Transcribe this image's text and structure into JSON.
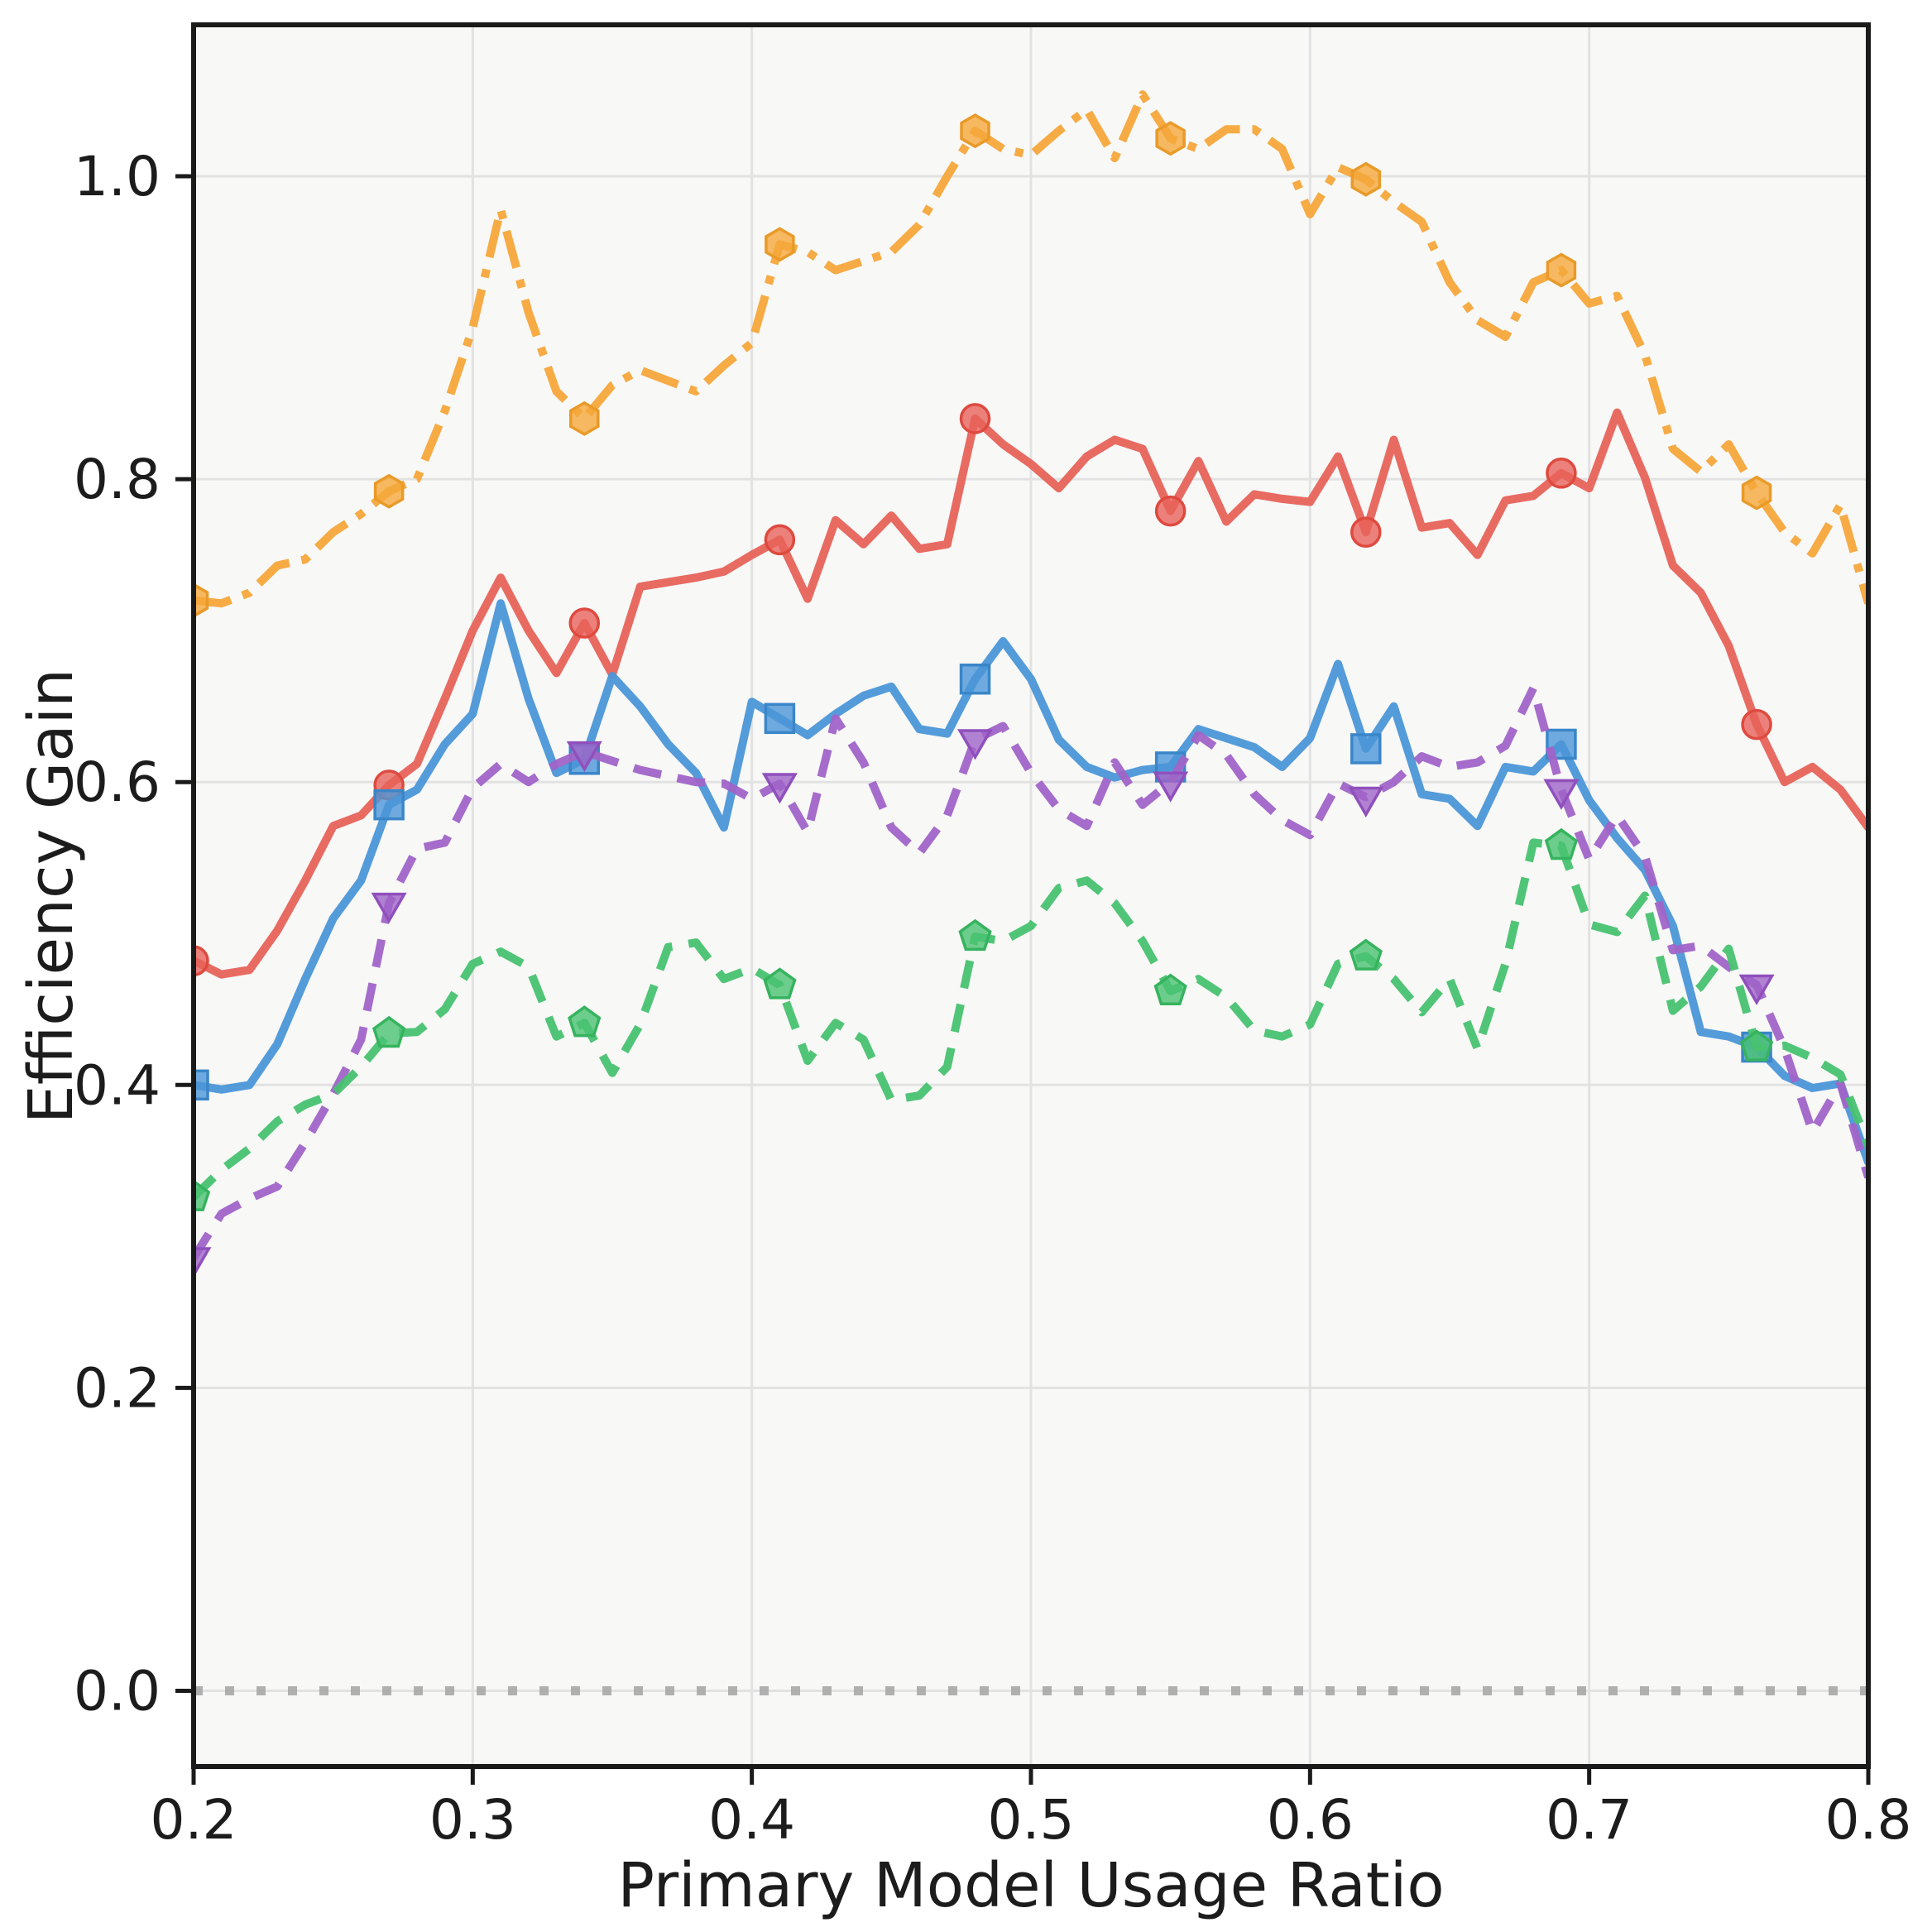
{
  "chart_data": {
    "type": "line",
    "title": "",
    "xlabel": "Primary Model Usage Ratio",
    "ylabel": "Efficiency Gain",
    "xlim": [
      0.2,
      0.8
    ],
    "ylim": [
      -0.05,
      1.1
    ],
    "x_tick_labels": [
      "0.2",
      "0.3",
      "0.4",
      "0.5",
      "0.6",
      "0.7",
      "0.8"
    ],
    "y_tick_labels": [
      "0.0",
      "0.2",
      "0.4",
      "0.6",
      "0.8",
      "1.0"
    ],
    "grid": true,
    "legend": "none",
    "marker_every": 7,
    "background_plot": "#F8F8F7",
    "background_figure": "#FFFFFF",
    "grid_color": "#E2E2E2",
    "spine_color": "#1a1a1a",
    "text_color": "#1c1c1c",
    "x": [
      0.2,
      0.21,
      0.22,
      0.23,
      0.24,
      0.25,
      0.26,
      0.27,
      0.28,
      0.29,
      0.3,
      0.31,
      0.32,
      0.33,
      0.34,
      0.35,
      0.36,
      0.37,
      0.38,
      0.39,
      0.4,
      0.41,
      0.42,
      0.43,
      0.44,
      0.45,
      0.46,
      0.47,
      0.48,
      0.49,
      0.5,
      0.51,
      0.52,
      0.53,
      0.54,
      0.55,
      0.56,
      0.57,
      0.58,
      0.59,
      0.6,
      0.61,
      0.62,
      0.63,
      0.64,
      0.65,
      0.66,
      0.67,
      0.68,
      0.69,
      0.7,
      0.71,
      0.72,
      0.73,
      0.74,
      0.75,
      0.76,
      0.77,
      0.78,
      0.79,
      0.8
    ],
    "baseline": {
      "y": 0.0,
      "color": "#A9A9A9",
      "linestyle": "dotted"
    },
    "series": [
      {
        "name": "orange-dashdot-hexagon",
        "color": "#F5A73A",
        "edge_color": "#E99A28",
        "linestyle": "dashdot",
        "marker": "hexagon",
        "values": [
          0.72,
          0.718,
          0.725,
          0.743,
          0.747,
          0.765,
          0.777,
          0.792,
          0.8,
          0.845,
          0.9,
          0.978,
          0.91,
          0.858,
          0.84,
          0.862,
          0.872,
          0.865,
          0.858,
          0.875,
          0.89,
          0.955,
          0.95,
          0.938,
          0.944,
          0.95,
          0.968,
          1.0,
          1.03,
          1.018,
          1.014,
          1.03,
          1.044,
          1.012,
          1.054,
          1.025,
          1.018,
          1.031,
          1.031,
          1.018,
          0.975,
          1.006,
          0.998,
          0.983,
          0.97,
          0.93,
          0.905,
          0.894,
          0.93,
          0.938,
          0.916,
          0.921,
          0.882,
          0.82,
          0.805,
          0.823,
          0.791,
          0.765,
          0.751,
          0.783,
          0.718
        ]
      },
      {
        "name": "red-solid-circle",
        "color": "#E7635A",
        "edge_color": "#DE4A3F",
        "linestyle": "solid",
        "marker": "circle",
        "values": [
          0.482,
          0.473,
          0.476,
          0.502,
          0.535,
          0.571,
          0.578,
          0.598,
          0.612,
          0.655,
          0.7,
          0.735,
          0.7,
          0.672,
          0.705,
          0.671,
          0.729,
          0.732,
          0.735,
          0.739,
          0.75,
          0.76,
          0.721,
          0.773,
          0.757,
          0.776,
          0.754,
          0.757,
          0.84,
          0.823,
          0.81,
          0.794,
          0.815,
          0.826,
          0.82,
          0.779,
          0.812,
          0.772,
          0.79,
          0.787,
          0.785,
          0.815,
          0.765,
          0.826,
          0.768,
          0.771,
          0.75,
          0.786,
          0.789,
          0.804,
          0.794,
          0.844,
          0.801,
          0.743,
          0.725,
          0.69,
          0.638,
          0.6,
          0.61,
          0.595,
          0.57
        ]
      },
      {
        "name": "blue-solid-square",
        "color": "#4B96D8",
        "edge_color": "#3A86C9",
        "linestyle": "solid",
        "marker": "square",
        "values": [
          0.4,
          0.397,
          0.4,
          0.427,
          0.47,
          0.51,
          0.535,
          0.585,
          0.595,
          0.625,
          0.645,
          0.718,
          0.655,
          0.606,
          0.615,
          0.67,
          0.65,
          0.625,
          0.606,
          0.57,
          0.653,
          0.642,
          0.631,
          0.645,
          0.657,
          0.663,
          0.635,
          0.632,
          0.668,
          0.693,
          0.668,
          0.628,
          0.61,
          0.603,
          0.608,
          0.61,
          0.635,
          0.629,
          0.623,
          0.61,
          0.629,
          0.678,
          0.622,
          0.65,
          0.592,
          0.589,
          0.571,
          0.61,
          0.607,
          0.625,
          0.588,
          0.563,
          0.542,
          0.505,
          0.435,
          0.432,
          0.425,
          0.406,
          0.398,
          0.401,
          0.349
        ]
      },
      {
        "name": "purple-dashed-triangle-down",
        "color": "#A064C8",
        "edge_color": "#9050BC",
        "linestyle": "dashed",
        "marker": "triangle-down",
        "values": [
          0.286,
          0.315,
          0.325,
          0.333,
          0.362,
          0.394,
          0.43,
          0.52,
          0.556,
          0.56,
          0.596,
          0.612,
          0.6,
          0.612,
          0.62,
          0.614,
          0.608,
          0.604,
          0.6,
          0.599,
          0.589,
          0.599,
          0.567,
          0.642,
          0.613,
          0.57,
          0.553,
          0.578,
          0.628,
          0.637,
          0.606,
          0.582,
          0.571,
          0.613,
          0.585,
          0.6,
          0.631,
          0.618,
          0.592,
          0.575,
          0.565,
          0.599,
          0.59,
          0.6,
          0.617,
          0.61,
          0.613,
          0.624,
          0.662,
          0.595,
          0.549,
          0.578,
          0.551,
          0.489,
          0.492,
          0.478,
          0.466,
          0.424,
          0.369,
          0.401,
          0.339
        ]
      },
      {
        "name": "green-dashed-pentagon",
        "color": "#48C270",
        "edge_color": "#36B35E",
        "linestyle": "dashed",
        "marker": "pentagon",
        "values": [
          0.326,
          0.344,
          0.358,
          0.376,
          0.387,
          0.394,
          0.412,
          0.434,
          0.435,
          0.45,
          0.48,
          0.488,
          0.478,
          0.432,
          0.441,
          0.408,
          0.44,
          0.491,
          0.494,
          0.47,
          0.477,
          0.466,
          0.416,
          0.441,
          0.43,
          0.39,
          0.393,
          0.412,
          0.498,
          0.495,
          0.505,
          0.53,
          0.535,
          0.52,
          0.495,
          0.462,
          0.47,
          0.458,
          0.436,
          0.432,
          0.44,
          0.48,
          0.485,
          0.47,
          0.448,
          0.47,
          0.424,
          0.48,
          0.56,
          0.558,
          0.506,
          0.501,
          0.525,
          0.449,
          0.465,
          0.49,
          0.425,
          0.426,
          0.418,
          0.407,
          0.36
        ]
      }
    ]
  }
}
